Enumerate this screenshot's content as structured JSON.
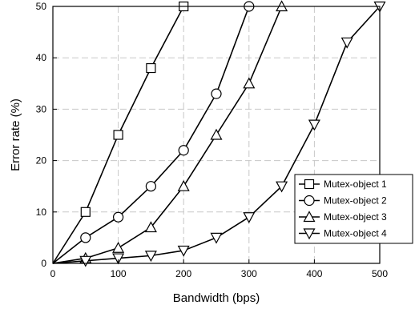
{
  "chart_data": {
    "type": "line",
    "title": "",
    "xlabel": "Bandwidth (bps)",
    "ylabel": "Error rate (%)",
    "xlim": [
      0,
      500
    ],
    "ylim": [
      0,
      50
    ],
    "xticks": [
      0,
      100,
      200,
      300,
      400,
      500
    ],
    "yticks": [
      0,
      10,
      20,
      30,
      40,
      50
    ],
    "grid": "dashed",
    "legend_position": "bottom-right",
    "series": [
      {
        "name": "Mutex-object 1",
        "marker": "square",
        "x": [
          0,
          50,
          100,
          150,
          200
        ],
        "y": [
          0,
          10,
          25,
          38,
          50
        ]
      },
      {
        "name": "Mutex-object 2",
        "marker": "circle",
        "x": [
          0,
          50,
          100,
          150,
          200,
          250,
          300
        ],
        "y": [
          0,
          5,
          9,
          15,
          22,
          33,
          50
        ]
      },
      {
        "name": "Mutex-object 3",
        "marker": "triangle-up",
        "x": [
          0,
          50,
          100,
          150,
          200,
          250,
          300,
          350
        ],
        "y": [
          0,
          1,
          3,
          7,
          15,
          25,
          35,
          50
        ]
      },
      {
        "name": "Mutex-object 4",
        "marker": "triangle-down",
        "x": [
          0,
          50,
          100,
          150,
          200,
          250,
          300,
          350,
          400,
          450,
          500
        ],
        "y": [
          0,
          0.5,
          1,
          1.5,
          2.5,
          5,
          9,
          15,
          27,
          43,
          50
        ]
      }
    ]
  }
}
